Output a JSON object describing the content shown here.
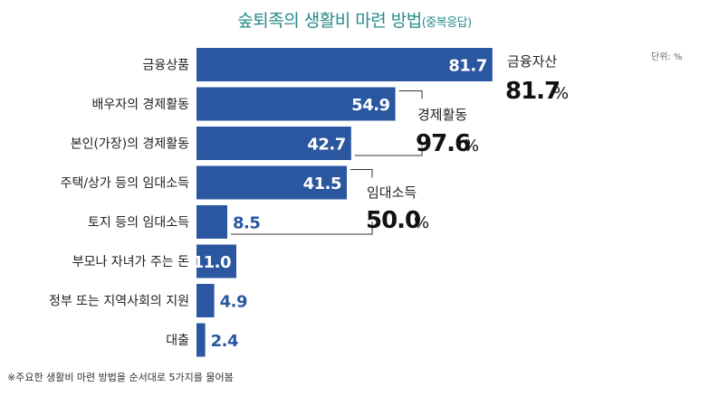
{
  "title": "숲퇴족의 생활비 마련 방법",
  "subtitle": "(중복응답)",
  "unit_label": "단위: %",
  "footnote": "※주요한 생활비 마련 방법을 순서대로 5가지를 물어봄",
  "colors": {
    "bar": "#2b57a0",
    "title": "#2a8a8c",
    "connector": "#333333"
  },
  "chart_data": {
    "type": "bar",
    "orientation": "horizontal",
    "categories": [
      "금융상품",
      "배우자의 경제활동",
      "본인(가장)의 경제활동",
      "주택/상가 등의 임대소득",
      "토지 등의 임대소득",
      "부모나 자녀가 주는 돈",
      "정부 또는 지역사회의 지원",
      "대출"
    ],
    "values": [
      81.7,
      54.9,
      42.7,
      41.5,
      8.5,
      11.0,
      4.9,
      2.4
    ],
    "value_labels": [
      "81.7",
      "54.9",
      "42.7",
      "41.5",
      "8.5",
      "11.0",
      "4.9",
      "2.4"
    ],
    "xlim": [
      0,
      100
    ],
    "grid": false,
    "groups": [
      {
        "label": "금융자산",
        "value": "81.7",
        "unit": "%",
        "rows": [
          0
        ]
      },
      {
        "label": "경제활동",
        "value": "97.6",
        "unit": "%",
        "rows": [
          1,
          2
        ]
      },
      {
        "label": "임대소득",
        "value": "50.0",
        "unit": "%",
        "rows": [
          3,
          4
        ]
      }
    ]
  }
}
